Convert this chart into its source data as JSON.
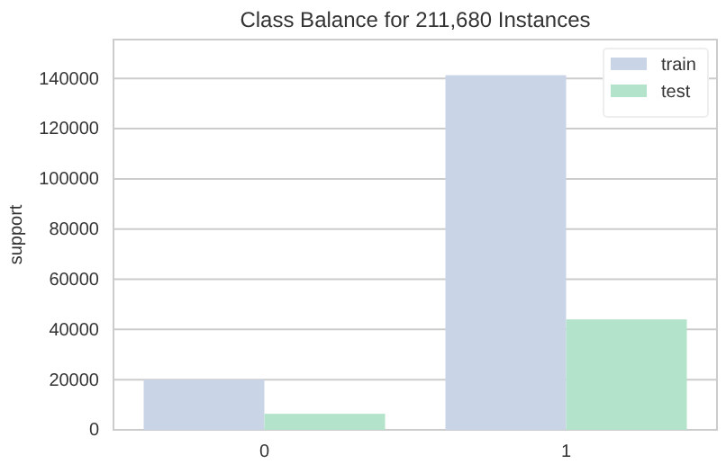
{
  "chart_data": {
    "type": "bar",
    "title": "Class Balance for 211,680 Instances",
    "ylabel": "support",
    "categories": [
      "0",
      "1"
    ],
    "series": [
      {
        "name": "train",
        "color": "#c9d4e7",
        "values": [
          20000,
          141300
        ]
      },
      {
        "name": "test",
        "color": "#b4e3cc",
        "values": [
          6400,
          44000
        ]
      }
    ],
    "ylim": [
      0,
      155500
    ],
    "yticks": [
      0,
      20000,
      40000,
      60000,
      80000,
      100000,
      120000,
      140000
    ],
    "grid": "y",
    "legend": "top right"
  }
}
